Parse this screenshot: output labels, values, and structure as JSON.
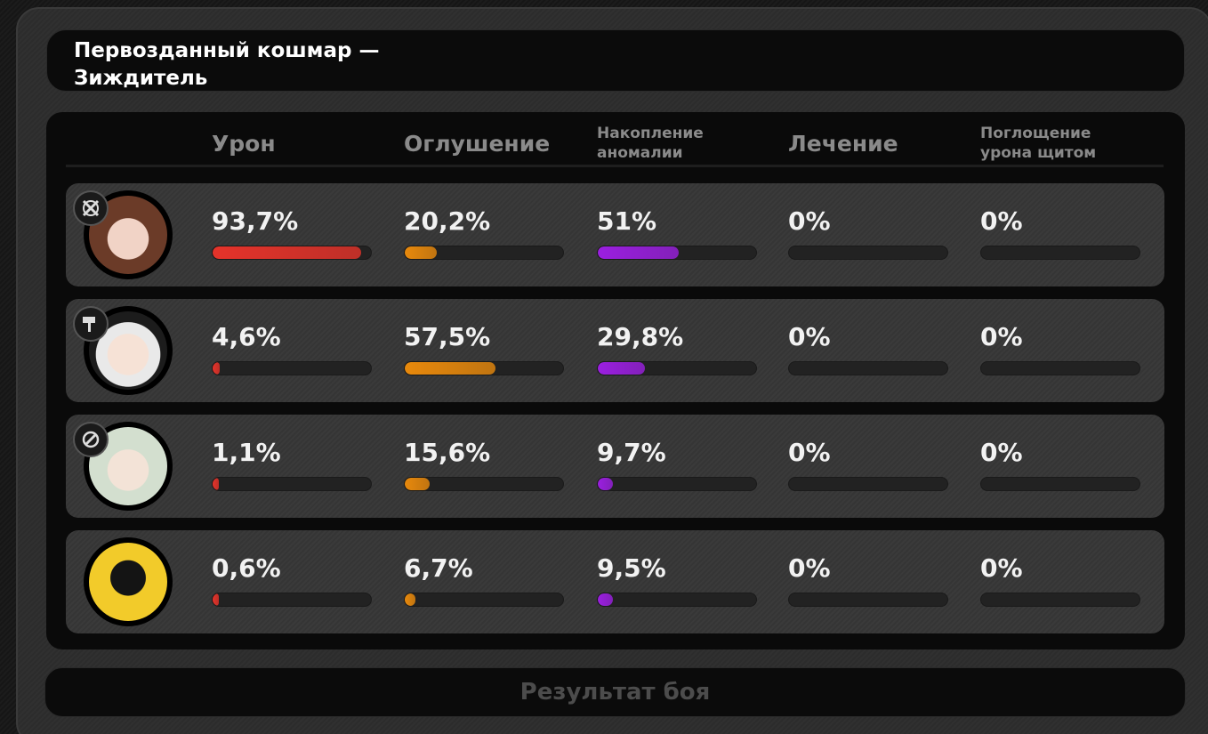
{
  "title": "Первозданный кошмар —\nЗиждитель",
  "columns": [
    {
      "label": "Урон",
      "size": "big"
    },
    {
      "label": "Оглушение",
      "size": "big"
    },
    {
      "label": "Накопление\nаномалии",
      "size": "small"
    },
    {
      "label": "Лечение",
      "size": "big"
    },
    {
      "label": "Поглощение\nурона щитом",
      "size": "small"
    }
  ],
  "bar_colors": {
    "damage": "#e5332a",
    "stun": "#e8890c",
    "anomaly": "#9b1fe0",
    "healing": "#777777",
    "shield": "#777777"
  },
  "rows": [
    {
      "avatar_icon": "agent-portrait-icon",
      "role_icon": "attack-role-icon",
      "stats": [
        {
          "text": "93,7%",
          "value": 93.7
        },
        {
          "text": "20,2%",
          "value": 20.2
        },
        {
          "text": "51%",
          "value": 51
        },
        {
          "text": "0%",
          "value": 0
        },
        {
          "text": "0%",
          "value": 0
        }
      ]
    },
    {
      "avatar_icon": "agent-portrait-icon",
      "role_icon": "stun-role-icon",
      "stats": [
        {
          "text": "4,6%",
          "value": 4.6
        },
        {
          "text": "57,5%",
          "value": 57.5
        },
        {
          "text": "29,8%",
          "value": 29.8
        },
        {
          "text": "0%",
          "value": 0
        },
        {
          "text": "0%",
          "value": 0
        }
      ]
    },
    {
      "avatar_icon": "agent-portrait-icon",
      "role_icon": "anomaly-role-icon",
      "stats": [
        {
          "text": "1,1%",
          "value": 1.1
        },
        {
          "text": "15,6%",
          "value": 15.6
        },
        {
          "text": "9,7%",
          "value": 9.7
        },
        {
          "text": "0%",
          "value": 0
        },
        {
          "text": "0%",
          "value": 0
        }
      ]
    },
    {
      "avatar_icon": "bangboo-portrait-icon",
      "role_icon": "",
      "stats": [
        {
          "text": "0,6%",
          "value": 0.6
        },
        {
          "text": "6,7%",
          "value": 6.7
        },
        {
          "text": "9,5%",
          "value": 9.5
        },
        {
          "text": "0%",
          "value": 0
        },
        {
          "text": "0%",
          "value": 0
        }
      ]
    }
  ],
  "result_button": "Результат боя"
}
